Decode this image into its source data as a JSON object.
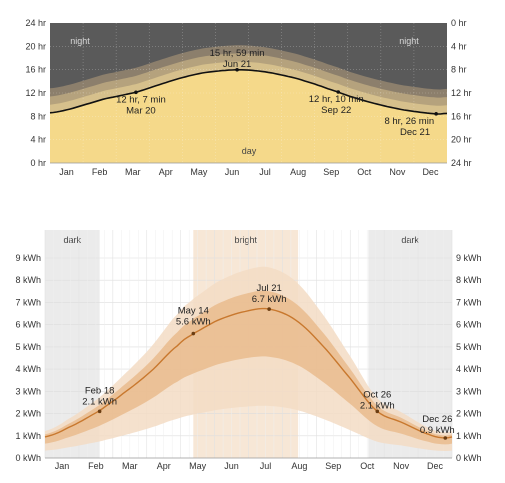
{
  "chart_data": [
    {
      "type": "area",
      "title": "",
      "months": [
        "Jan",
        "Feb",
        "Mar",
        "Apr",
        "May",
        "Jun",
        "Jul",
        "Aug",
        "Sep",
        "Oct",
        "Nov",
        "Dec"
      ],
      "ylim": [
        0,
        24
      ],
      "yticks_left": [
        "0 hr",
        "4 hr",
        "8 hr",
        "12 hr",
        "16 hr",
        "20 hr",
        "24 hr"
      ],
      "yticks_right": [
        "24 hr",
        "20 hr",
        "16 hr",
        "12 hr",
        "8 hr",
        "4 hr",
        "0 hr"
      ],
      "daylight_hours": {
        "x_day_of_year": [
          0,
          15,
          32,
          50,
          79,
          100,
          121,
          142,
          172,
          195,
          215,
          235,
          265,
          285,
          305,
          325,
          355,
          365
        ],
        "y_hours": [
          8.6,
          9.1,
          10.0,
          11.0,
          12.12,
          13.4,
          14.6,
          15.5,
          15.98,
          15.7,
          15.0,
          14.0,
          12.17,
          10.9,
          9.9,
          9.1,
          8.43,
          8.5
        ]
      },
      "zone_labels": {
        "night": "night",
        "day": "day"
      },
      "annotations": [
        {
          "line1": "12 hr, 7 min",
          "line2": "Mar 20",
          "x_day_of_year": 79,
          "y_hours": 12.12
        },
        {
          "line1": "15 hr, 59 min",
          "line2": "Jun 21",
          "x_day_of_year": 172,
          "y_hours": 15.98
        },
        {
          "line1": "12 hr, 10 min",
          "line2": "Sep 22",
          "x_day_of_year": 265,
          "y_hours": 12.17
        },
        {
          "line1": "8 hr, 26 min",
          "line2": "Dec 21",
          "x_day_of_year": 355,
          "y_hours": 8.43
        }
      ],
      "colors": {
        "day": "#f5d98a",
        "night": "#5a5a5a",
        "twilight": [
          "#d6c08c",
          "#b5a27d",
          "#8c7f6c"
        ],
        "curve": "#111111"
      }
    },
    {
      "type": "area",
      "title": "",
      "months": [
        "Jan",
        "Feb",
        "Mar",
        "Apr",
        "May",
        "Jun",
        "Jul",
        "Aug",
        "Sep",
        "Oct",
        "Nov",
        "Dec"
      ],
      "ylim": [
        0,
        9
      ],
      "yticks": [
        "0 kWh",
        "1 kWh",
        "2 kWh",
        "3 kWh",
        "4 kWh",
        "5 kWh",
        "6 kWh",
        "7 kWh",
        "8 kWh",
        "9 kWh"
      ],
      "median_kwh": {
        "x_day_of_year": [
          0,
          20,
          48,
          70,
          95,
          120,
          133,
          155,
          180,
          201,
          225,
          250,
          275,
          298,
          320,
          345,
          359,
          365
        ],
        "y_kwh": [
          0.95,
          1.35,
          2.1,
          2.9,
          3.9,
          5.1,
          5.6,
          6.2,
          6.6,
          6.7,
          6.2,
          5.0,
          3.5,
          2.1,
          1.6,
          1.05,
          0.9,
          0.95
        ]
      },
      "periods": [
        {
          "label": "dark",
          "start_day": 0,
          "end_day": 49
        },
        {
          "label": "bright",
          "start_day": 133,
          "end_day": 227
        },
        {
          "label": "dark",
          "start_day": 290,
          "end_day": 365
        }
      ],
      "annotations": [
        {
          "line1": "Feb 18",
          "line2": "2.1 kWh",
          "x_day_of_year": 49,
          "y_kwh": 2.1
        },
        {
          "line1": "May 14",
          "line2": "5.6 kWh",
          "x_day_of_year": 133,
          "y_kwh": 5.6
        },
        {
          "line1": "Jul 21",
          "line2": "6.7 kWh",
          "x_day_of_year": 201,
          "y_kwh": 6.7
        },
        {
          "line1": "Oct 26",
          "line2": "2.1 kWh",
          "x_day_of_year": 298,
          "y_kwh": 2.1
        },
        {
          "line1": "Dec 26",
          "line2": "0.9 kWh",
          "x_day_of_year": 359,
          "y_kwh": 0.9
        }
      ],
      "colors": {
        "line": "#c8782e",
        "band_inner": "#e9b98a",
        "band_outer": "#f3dcc4",
        "dark": "#ebebeb",
        "bright": "#f7e7d6"
      }
    }
  ]
}
